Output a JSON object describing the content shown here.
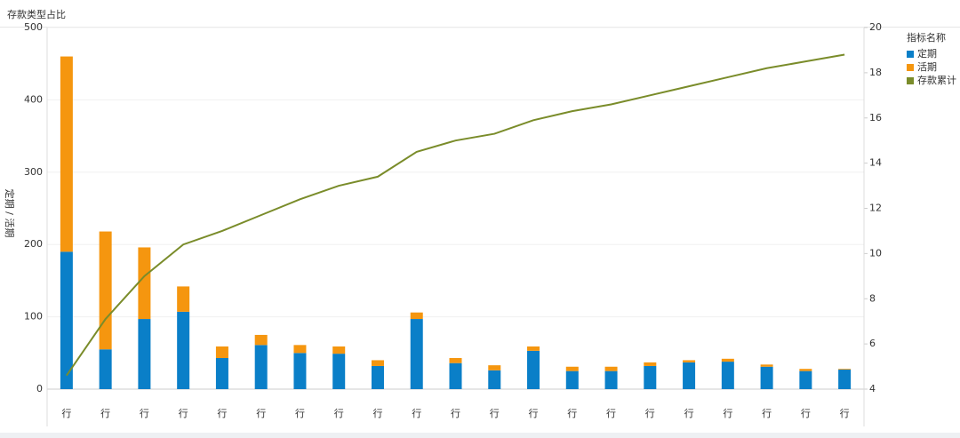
{
  "title": "存款类型占比",
  "chart_data": {
    "type": "bar-line",
    "y_label": "定期 / 活期",
    "legend_title": "指标名称",
    "categories": [
      "行",
      "行",
      "行",
      "行",
      "行",
      "行",
      "行",
      "行",
      "行",
      "行",
      "行",
      "行",
      "行",
      "行",
      "行",
      "行",
      "行",
      "行",
      "行",
      "行",
      "行"
    ],
    "series": [
      {
        "name": "定期",
        "type": "bar",
        "color": "#0a7fc8",
        "values": [
          190,
          55,
          97,
          107,
          43,
          61,
          50,
          49,
          32,
          97,
          36,
          26,
          53,
          25,
          25,
          32,
          37,
          38,
          31,
          25,
          27
        ]
      },
      {
        "name": "活期",
        "type": "bar",
        "color": "#f5960f",
        "values": [
          270,
          163,
          99,
          35,
          16,
          14,
          11,
          10,
          8,
          9,
          7,
          7,
          6,
          6,
          6,
          5,
          3,
          4,
          3,
          3,
          1
        ]
      },
      {
        "name": "存款累计",
        "type": "line",
        "axis": "y2",
        "color": "#7a8c2a",
        "values": [
          4.6,
          7.1,
          9.0,
          10.4,
          11.0,
          11.7,
          12.4,
          13.0,
          13.4,
          14.5,
          15.0,
          15.3,
          15.9,
          16.3,
          16.6,
          17.0,
          17.4,
          17.8,
          18.2,
          18.5,
          18.8
        ]
      }
    ],
    "ylim": [
      0,
      500
    ],
    "yticks": [
      0,
      100,
      200,
      300,
      400,
      500
    ],
    "y2lim": [
      4,
      20
    ],
    "y2ticks": [
      4,
      6,
      8,
      10,
      12,
      14,
      16,
      18,
      20
    ],
    "grid": true,
    "stacked": true,
    "legend": "right"
  }
}
